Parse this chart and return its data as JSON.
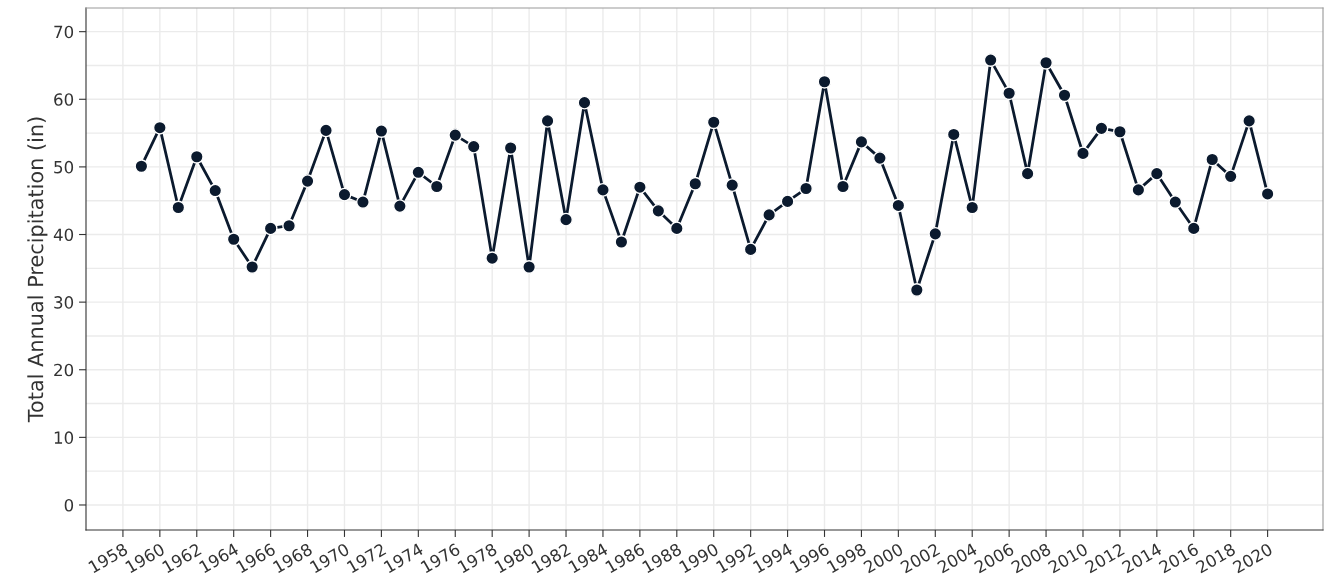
{
  "chart_data": {
    "type": "line",
    "ylabel": "Total Annual Precipitation (in)",
    "x": [
      1959,
      1960,
      1961,
      1962,
      1963,
      1964,
      1965,
      1966,
      1967,
      1968,
      1969,
      1970,
      1971,
      1972,
      1973,
      1974,
      1975,
      1976,
      1977,
      1978,
      1979,
      1980,
      1981,
      1982,
      1983,
      1984,
      1985,
      1986,
      1987,
      1988,
      1989,
      1990,
      1991,
      1992,
      1993,
      1994,
      1995,
      1996,
      1997,
      1998,
      1999,
      2000,
      2001,
      2002,
      2003,
      2004,
      2005,
      2006,
      2007,
      2008,
      2009,
      2010,
      2011,
      2012,
      2013,
      2014,
      2015,
      2016,
      2017,
      2018,
      2019,
      2020
    ],
    "series": [
      {
        "color": "#0b1a2e",
        "values": [
          50.1,
          55.8,
          44.0,
          51.5,
          46.5,
          39.3,
          35.2,
          40.9,
          41.3,
          47.9,
          55.4,
          45.9,
          44.8,
          55.3,
          44.2,
          49.2,
          47.1,
          54.7,
          53.0,
          36.5,
          52.8,
          35.2,
          56.8,
          42.2,
          59.5,
          46.6,
          38.9,
          47.0,
          43.5,
          40.9,
          47.5,
          56.6,
          47.3,
          37.8,
          42.9,
          44.9,
          46.8,
          62.6,
          47.1,
          53.7,
          51.3,
          44.3,
          31.8,
          40.1,
          54.8,
          44.0,
          65.8,
          60.9,
          49.0,
          65.4,
          60.6,
          52.0,
          55.7,
          55.2,
          46.6,
          49.0,
          44.8,
          40.9,
          51.1,
          48.6,
          56.8,
          46.0
        ]
      }
    ],
    "xlim": [
      1956,
      2023
    ],
    "ylim": [
      -3.7,
      73.5
    ],
    "xticks": [
      1958,
      1960,
      1962,
      1964,
      1966,
      1968,
      1970,
      1972,
      1974,
      1976,
      1978,
      1980,
      1982,
      1984,
      1986,
      1988,
      1990,
      1992,
      1994,
      1996,
      1998,
      2000,
      2002,
      2004,
      2006,
      2008,
      2010,
      2012,
      2014,
      2016,
      2018,
      2020
    ],
    "yticks": [
      0,
      10,
      20,
      30,
      40,
      50,
      60,
      70
    ],
    "grid": true,
    "marker": "circle",
    "line_style": "solid"
  }
}
